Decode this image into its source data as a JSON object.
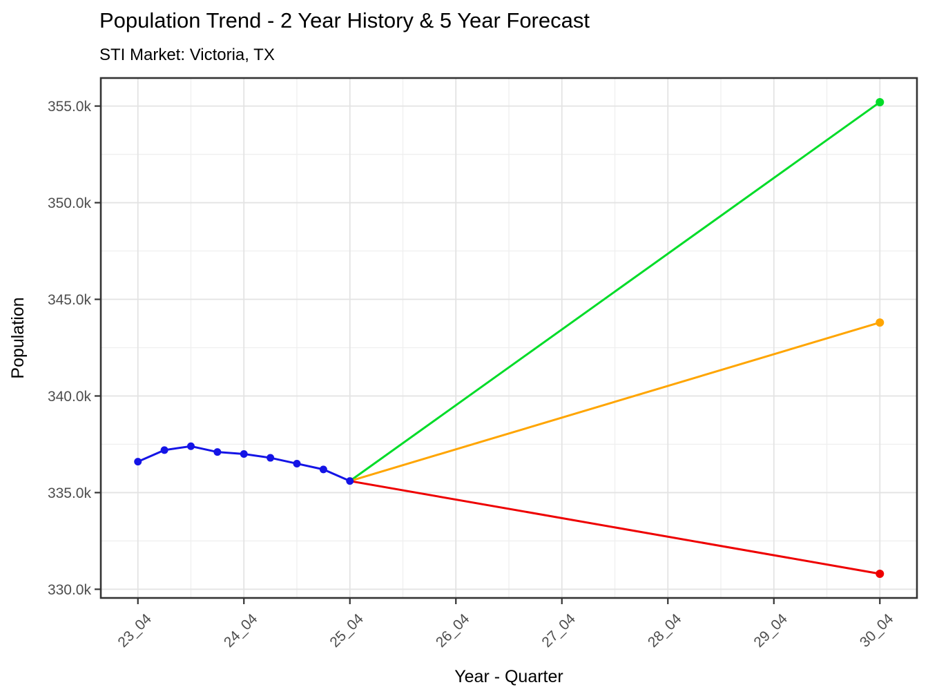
{
  "title": "Population Trend - 2 Year History & 5 Year Forecast",
  "subtitle": "STI Market: Victoria, TX",
  "chart_data": {
    "type": "line",
    "title": "Population Trend - 2 Year History & 5 Year Forecast",
    "subtitle": "STI Market: Victoria, TX",
    "xlabel": "Year - Quarter",
    "ylabel": "Population",
    "values_unit": "thousands",
    "grid": true,
    "legend": "none",
    "x_unit_note": "quarters since 23_04",
    "x_domain": [
      -1.4,
      29.4
    ],
    "y_domain": [
      329.55,
      356.45
    ],
    "x_ticks": [
      {
        "label": "23_04",
        "u": 0
      },
      {
        "label": "24_04",
        "u": 4
      },
      {
        "label": "25_04",
        "u": 8
      },
      {
        "label": "26_04",
        "u": 12
      },
      {
        "label": "27_04",
        "u": 16
      },
      {
        "label": "28_04",
        "u": 20
      },
      {
        "label": "29_04",
        "u": 24
      },
      {
        "label": "30_04",
        "u": 28
      }
    ],
    "x_minor": [
      2,
      6,
      10,
      14,
      18,
      22,
      26
    ],
    "y_ticks": [
      {
        "label": "330.0k",
        "value": 330.0
      },
      {
        "label": "335.0k",
        "value": 335.0
      },
      {
        "label": "340.0k",
        "value": 340.0
      },
      {
        "label": "345.0k",
        "value": 345.0
      },
      {
        "label": "350.0k",
        "value": 350.0
      },
      {
        "label": "355.0k",
        "value": 355.0
      }
    ],
    "y_minor": [
      332.5,
      337.5,
      342.5,
      347.5,
      352.5
    ],
    "series": [
      {
        "name": "history",
        "color": "#1414e6",
        "marker": "all",
        "marker_radius": 5.5,
        "quarters": [
          "23_04",
          "24_01",
          "24_02",
          "24_03",
          "24_04",
          "25_01",
          "25_02",
          "25_03",
          "25_04"
        ],
        "x": [
          0,
          1,
          2,
          3,
          4,
          5,
          6,
          7,
          8
        ],
        "values": [
          336.6,
          337.2,
          337.4,
          337.1,
          337.0,
          336.8,
          336.5,
          336.2,
          335.6
        ]
      },
      {
        "name": "forecast-high",
        "color": "#00dc28",
        "marker": "last",
        "marker_radius": 6,
        "quarters": [
          "25_04",
          "30_04"
        ],
        "x": [
          8,
          28
        ],
        "values": [
          335.6,
          355.2
        ]
      },
      {
        "name": "forecast-mid",
        "color": "#ffa500",
        "marker": "last",
        "marker_radius": 6,
        "quarters": [
          "25_04",
          "30_04"
        ],
        "x": [
          8,
          28
        ],
        "values": [
          335.6,
          343.8
        ]
      },
      {
        "name": "forecast-low",
        "color": "#ee0000",
        "marker": "last",
        "marker_radius": 6,
        "quarters": [
          "25_04",
          "30_04"
        ],
        "x": [
          8,
          28
        ],
        "values": [
          335.6,
          330.8
        ]
      }
    ]
  }
}
